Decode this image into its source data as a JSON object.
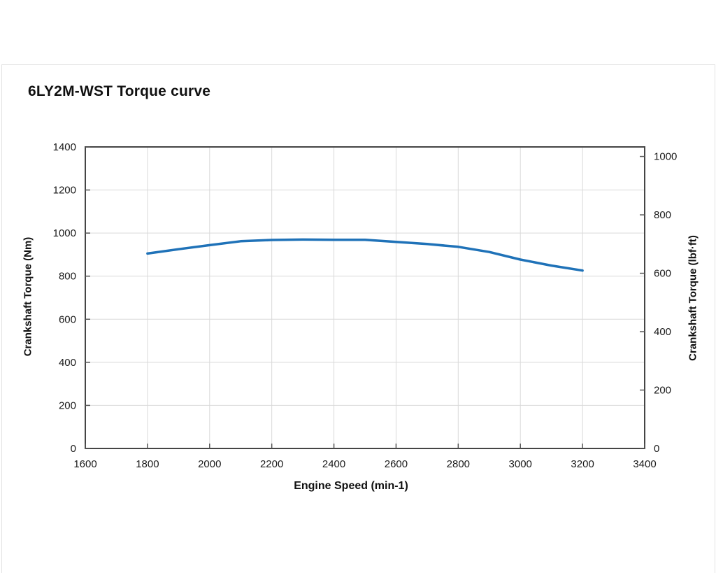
{
  "panel": {
    "border_color": "#e2e2e2",
    "background": "#ffffff"
  },
  "chart_data": {
    "type": "line",
    "title": "6LY2M-WST Torque curve",
    "xlabel": "Engine Speed (min-1)",
    "ylabel_left": "Crankshaft Torque (Nm)",
    "ylabel_right": "Crankshaft Torque (lbf·ft)",
    "xlim": [
      1600,
      3400
    ],
    "ylim_nm": [
      0,
      1400
    ],
    "x_ticks": [
      1600,
      1800,
      2000,
      2200,
      2400,
      2600,
      2800,
      3000,
      3200,
      3400
    ],
    "y_left_ticks": [
      0,
      200,
      400,
      600,
      800,
      1000,
      1200,
      1400
    ],
    "y_right_ticks": [
      0,
      200,
      400,
      600,
      800,
      1000
    ],
    "lbfft_to_nm": 1.35582,
    "grid": true,
    "legend": "none",
    "colors": {
      "line": "#1f72b8",
      "grid": "#d9d9d9",
      "frame": "#454545",
      "tick": "#555555",
      "text": "#1a1a1a"
    },
    "series": [
      {
        "name": "Crankshaft Torque",
        "x": [
          1800,
          1900,
          2000,
          2100,
          2200,
          2300,
          2400,
          2500,
          2600,
          2700,
          2800,
          2900,
          3000,
          3100,
          3200
        ],
        "y_nm": [
          905,
          925,
          944,
          962,
          968,
          970,
          969,
          969,
          959,
          949,
          936,
          912,
          877,
          849,
          826
        ]
      }
    ]
  }
}
